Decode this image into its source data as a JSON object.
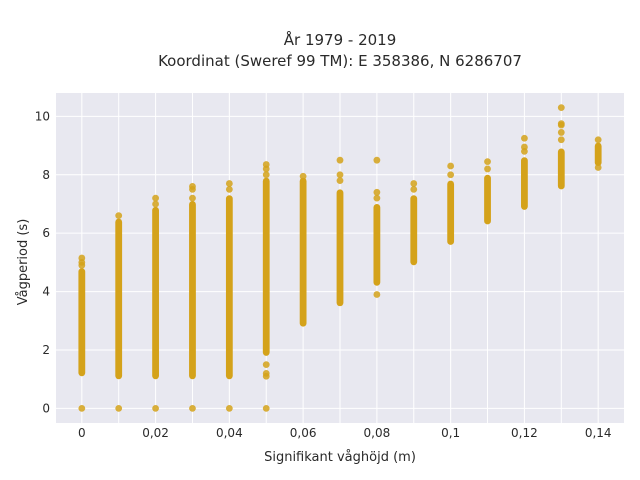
{
  "chart_data": {
    "type": "scatter",
    "title_line1": "År 1979 - 2019",
    "title_line2": "Koordinat (Sweref 99 TM): E 358386, N 6286707",
    "xlabel": "Signifikant våghöjd (m)",
    "ylabel": "Vågperiod (s)",
    "xlim": [
      -0.007,
      0.147
    ],
    "ylim": [
      -0.5,
      10.8
    ],
    "x_ticks": [
      0,
      0.01,
      0.02,
      0.03,
      0.04,
      0.05,
      0.06,
      0.07,
      0.08,
      0.09,
      0.1,
      0.11,
      0.12,
      0.13,
      0.14
    ],
    "x_tick_labels": [
      "0",
      "0,02",
      "0,04",
      "0,06",
      "0,08",
      "0,1",
      "0,12",
      "0,14"
    ],
    "x_tick_label_values": [
      0,
      0.02,
      0.04,
      0.06,
      0.08,
      0.1,
      0.12,
      0.14
    ],
    "y_ticks": [
      0,
      2,
      4,
      6,
      8,
      10
    ],
    "y_tick_labels": [
      "0",
      "2",
      "4",
      "6",
      "8",
      "10"
    ],
    "grid": true,
    "marker_color": "#d4a21a",
    "plot_bg": "#e8e8f0",
    "series": [
      {
        "columns": [
          {
            "x": 0.0,
            "band": [
              1.1,
              4.8
            ],
            "points": [
              0,
              5.0,
              5.15,
              4.9
            ]
          },
          {
            "x": 0.01,
            "band": [
              1.0,
              6.5
            ],
            "points": [
              0,
              6.6
            ]
          },
          {
            "x": 0.02,
            "band": [
              1.0,
              6.9
            ],
            "points": [
              0,
              7.0,
              7.2
            ]
          },
          {
            "x": 0.03,
            "band": [
              1.0,
              7.1
            ],
            "points": [
              0,
              7.2,
              7.5,
              7.6
            ]
          },
          {
            "x": 0.04,
            "band": [
              1.0,
              7.3
            ],
            "points": [
              0,
              7.5,
              7.7
            ]
          },
          {
            "x": 0.05,
            "band": [
              1.8,
              7.9
            ],
            "points": [
              0,
              1.1,
              1.2,
              1.5,
              8.0,
              8.2,
              8.35
            ]
          },
          {
            "x": 0.06,
            "band": [
              2.8,
              7.9
            ],
            "points": [
              7.95
            ]
          },
          {
            "x": 0.07,
            "band": [
              3.5,
              7.5
            ],
            "points": [
              7.8,
              8.0,
              8.5
            ]
          },
          {
            "x": 0.08,
            "band": [
              4.2,
              7.0
            ],
            "points": [
              3.9,
              7.2,
              7.4,
              8.5
            ]
          },
          {
            "x": 0.09,
            "band": [
              4.9,
              7.3
            ],
            "points": [
              7.5,
              7.7
            ]
          },
          {
            "x": 0.1,
            "band": [
              5.6,
              7.8
            ],
            "points": [
              8.0,
              8.3
            ]
          },
          {
            "x": 0.11,
            "band": [
              6.3,
              8.0
            ],
            "points": [
              8.2,
              8.45
            ]
          },
          {
            "x": 0.12,
            "band": [
              6.8,
              8.6
            ],
            "points": [
              8.8,
              8.95,
              9.25
            ]
          },
          {
            "x": 0.13,
            "band": [
              7.5,
              8.9
            ],
            "points": [
              9.2,
              9.45,
              9.7,
              9.75,
              10.3
            ]
          },
          {
            "x": 0.14,
            "band": [
              8.3,
              9.1
            ],
            "points": [
              8.25,
              9.2
            ]
          }
        ]
      }
    ]
  }
}
